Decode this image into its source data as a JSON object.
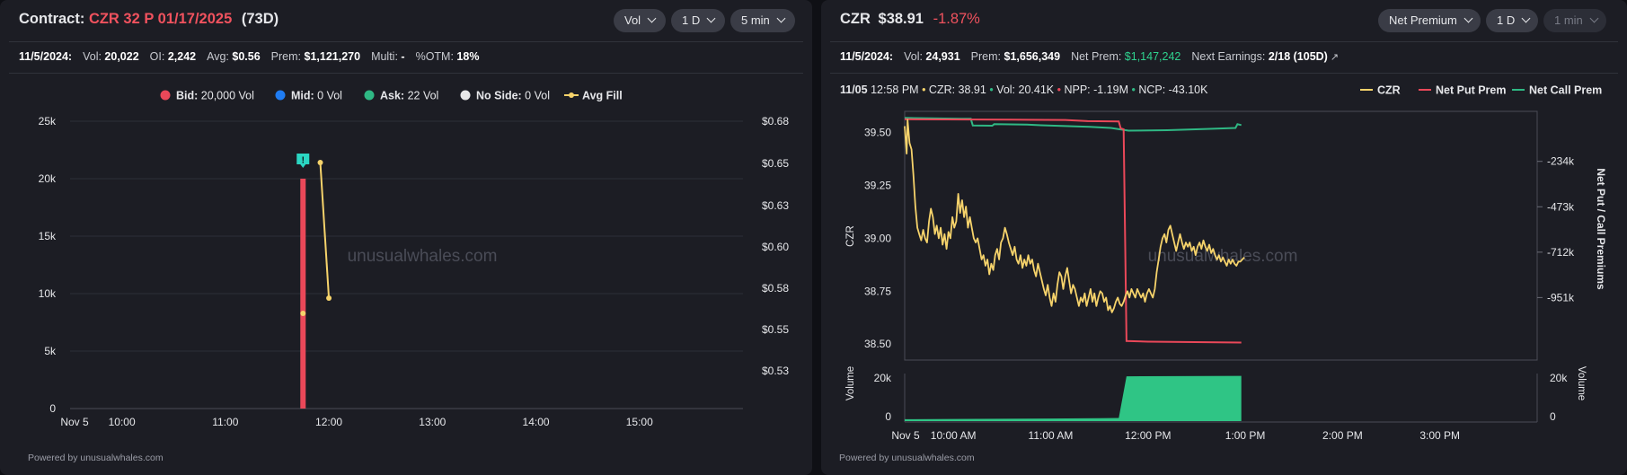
{
  "left": {
    "header": {
      "prefix": "Contract:",
      "contract": "CZR 32 P 01/17/2025",
      "days": "(73D)",
      "controls": [
        {
          "label": "Vol",
          "chevron": true,
          "enabled": true
        },
        {
          "label": "1 D",
          "chevron": true,
          "enabled": true
        },
        {
          "label": "5 min",
          "chevron": true,
          "enabled": true
        }
      ]
    },
    "stats": [
      {
        "label": "11/5/2024:",
        "value": "",
        "strong_label": true
      },
      {
        "label": "Vol:",
        "value": "20,022"
      },
      {
        "label": "OI:",
        "value": "2,242"
      },
      {
        "label": "Avg:",
        "value": "$0.56"
      },
      {
        "label": "Prem:",
        "value": "$1,121,270"
      },
      {
        "label": "Multi:",
        "value": "-"
      },
      {
        "label": "%OTM:",
        "value": "18%"
      }
    ],
    "legend": [
      {
        "name": "Bid:",
        "value": "20,000 Vol",
        "color": "#ea4859",
        "marker": "dot"
      },
      {
        "name": "Mid:",
        "value": "0 Vol",
        "color": "#1f7cf2",
        "marker": "dot"
      },
      {
        "name": "Ask:",
        "value": "22 Vol",
        "color": "#2fb884",
        "marker": "dot"
      },
      {
        "name": "No Side:",
        "value": "0 Vol",
        "color": "#e8e8e8",
        "marker": "dot"
      },
      {
        "name": "Avg Fill",
        "value": "",
        "color": "#f6d36b",
        "marker": "line"
      }
    ],
    "watermark": "unusualwhales.com",
    "powered": "Powered by unusualwhales.com"
  },
  "right": {
    "header": {
      "ticker": "CZR",
      "price": "$38.91",
      "change": "-1.87%",
      "controls": [
        {
          "label": "Net Premium",
          "chevron": true,
          "enabled": true
        },
        {
          "label": "1 D",
          "chevron": true,
          "enabled": true
        },
        {
          "label": "1 min",
          "chevron": true,
          "enabled": false
        }
      ]
    },
    "stats": [
      {
        "label": "11/5/2024:",
        "value": "",
        "strong_label": true
      },
      {
        "label": "Vol:",
        "value": "24,931"
      },
      {
        "label": "Prem:",
        "value": "$1,656,349"
      },
      {
        "label": "Net Prem:",
        "value": "$1,147,242",
        "green": true
      },
      {
        "label": "Next Earnings:",
        "value": "2/18 (105D)",
        "link": true
      }
    ],
    "hover": {
      "time": "11/05 12:58 PM",
      "items": [
        {
          "label": "CZR:",
          "value": "38.91",
          "color": "#f6d36b"
        },
        {
          "label": "Vol:",
          "value": "20.41K",
          "color": "#2fb884"
        },
        {
          "label": "NPP:",
          "value": "-1.19M",
          "color": "#ea4859"
        },
        {
          "label": "NCP:",
          "value": "-43.10K",
          "color": "#2fb884"
        }
      ]
    },
    "legend": [
      {
        "name": "CZR",
        "color": "#f6d36b"
      },
      {
        "name": "Net Put Prem",
        "color": "#ea4859"
      },
      {
        "name": "Net Call Prem",
        "color": "#2fb884"
      }
    ],
    "watermark": "unusualwhales.com",
    "powered": "Powered by unusualwhales.com"
  },
  "chart_data": [
    {
      "type": "bar",
      "x_ticks": [
        "Nov 5",
        "10:00",
        "11:00",
        "12:00",
        "13:00",
        "14:00",
        "15:00"
      ],
      "x_range_hours": [
        9.5,
        16.0
      ],
      "y_left": {
        "ticks": [
          "0",
          "5k",
          "10k",
          "15k",
          "20k",
          "25k"
        ],
        "range": [
          0,
          25000
        ]
      },
      "y_right": {
        "ticks": [
          "$0.53",
          "$0.55",
          "$0.58",
          "$0.60",
          "$0.63",
          "$0.65",
          "$0.68"
        ],
        "range": [
          0.515,
          0.68
        ]
      },
      "bars": [
        {
          "hour": 11.75,
          "bid": 20000,
          "ask": 22,
          "side": "bid",
          "color": "#ea4859"
        }
      ],
      "avg_fill": [
        {
          "hour": 11.75,
          "price": 0.56
        },
        {
          "hour": 11.917,
          "price": 0.652
        },
        {
          "hour": 12.0,
          "price": 0.572
        }
      ],
      "markers": [
        {
          "hour": 11.75,
          "label": "!",
          "color": "#2bd6c2"
        }
      ],
      "grid": true
    },
    {
      "type": "line",
      "x_ticks": [
        "Nov 5",
        "10:00 AM",
        "11:00 AM",
        "12:00 PM",
        "1:00 PM",
        "2:00 PM",
        "3:00 PM"
      ],
      "x_range_hours": [
        9.5,
        16.0
      ],
      "y_left": {
        "label": "CZR",
        "ticks": [
          "38.50",
          "38.75",
          "39.00",
          "39.25",
          "39.50"
        ],
        "range": [
          38.45,
          39.6
        ]
      },
      "y_right": {
        "label": "Net Put / Call Premiums",
        "ticks": [
          "-234k",
          "-473k",
          "-712k",
          "-951k"
        ],
        "range": [
          -1195000,
          20000
        ]
      },
      "volume": {
        "label": "Volume",
        "left_ticks": [
          "0",
          "20k"
        ],
        "right_ticks": [
          "0",
          "20k"
        ],
        "range": [
          0,
          22000
        ],
        "color": "#2fc585"
      },
      "czr_points": [
        [
          9.5,
          39.53
        ],
        [
          9.52,
          39.4
        ],
        [
          9.53,
          39.56
        ],
        [
          9.55,
          39.45
        ],
        [
          9.57,
          39.42
        ],
        [
          9.59,
          39.3
        ],
        [
          9.61,
          39.15
        ],
        [
          9.63,
          39.05
        ],
        [
          9.65,
          39.02
        ],
        [
          9.67,
          38.99
        ],
        [
          9.69,
          39.04
        ],
        [
          9.71,
          39.0
        ],
        [
          9.73,
          38.98
        ],
        [
          9.75,
          39.08
        ],
        [
          9.77,
          39.14
        ],
        [
          9.79,
          39.1
        ],
        [
          9.81,
          39.02
        ],
        [
          9.83,
          39.06
        ],
        [
          9.85,
          39.0
        ],
        [
          9.87,
          39.05
        ],
        [
          9.89,
          38.97
        ],
        [
          9.91,
          39.02
        ],
        [
          9.93,
          38.95
        ],
        [
          9.95,
          39.03
        ],
        [
          9.97,
          39.0
        ],
        [
          9.99,
          39.1
        ],
        [
          10.01,
          39.05
        ],
        [
          10.03,
          39.08
        ],
        [
          10.05,
          39.21
        ],
        [
          10.07,
          39.12
        ],
        [
          10.09,
          39.18
        ],
        [
          10.11,
          39.1
        ],
        [
          10.13,
          39.15
        ],
        [
          10.15,
          39.05
        ],
        [
          10.17,
          39.1
        ],
        [
          10.19,
          39.05
        ],
        [
          10.21,
          39.0
        ],
        [
          10.23,
          38.98
        ],
        [
          10.25,
          39.0
        ],
        [
          10.27,
          38.95
        ],
        [
          10.29,
          38.9
        ],
        [
          10.31,
          38.92
        ],
        [
          10.33,
          38.87
        ],
        [
          10.35,
          38.9
        ],
        [
          10.37,
          38.83
        ],
        [
          10.39,
          38.88
        ],
        [
          10.41,
          38.85
        ],
        [
          10.43,
          38.92
        ],
        [
          10.45,
          38.95
        ],
        [
          10.47,
          38.9
        ],
        [
          10.49,
          38.98
        ],
        [
          10.51,
          39.0
        ],
        [
          10.53,
          39.05
        ],
        [
          10.55,
          39.02
        ],
        [
          10.57,
          38.98
        ],
        [
          10.59,
          38.95
        ],
        [
          10.61,
          38.92
        ],
        [
          10.63,
          38.96
        ],
        [
          10.65,
          38.9
        ],
        [
          10.67,
          38.88
        ],
        [
          10.69,
          38.92
        ],
        [
          10.71,
          38.86
        ],
        [
          10.73,
          38.9
        ],
        [
          10.75,
          38.87
        ],
        [
          10.77,
          38.92
        ],
        [
          10.79,
          38.88
        ],
        [
          10.81,
          38.9
        ],
        [
          10.83,
          38.85
        ],
        [
          10.85,
          38.82
        ],
        [
          10.87,
          38.88
        ],
        [
          10.89,
          38.84
        ],
        [
          10.91,
          38.8
        ],
        [
          10.93,
          38.76
        ],
        [
          10.95,
          38.73
        ],
        [
          10.97,
          38.78
        ],
        [
          10.99,
          38.72
        ],
        [
          11.01,
          38.68
        ],
        [
          11.03,
          38.74
        ],
        [
          11.05,
          38.7
        ],
        [
          11.07,
          38.78
        ],
        [
          11.09,
          38.84
        ],
        [
          11.11,
          38.82
        ],
        [
          11.13,
          38.76
        ],
        [
          11.15,
          38.82
        ],
        [
          11.17,
          38.86
        ],
        [
          11.19,
          38.8
        ],
        [
          11.21,
          38.74
        ],
        [
          11.23,
          38.78
        ],
        [
          11.25,
          38.76
        ],
        [
          11.27,
          38.72
        ],
        [
          11.29,
          38.68
        ],
        [
          11.31,
          38.72
        ],
        [
          11.33,
          38.7
        ],
        [
          11.35,
          38.74
        ],
        [
          11.37,
          38.68
        ],
        [
          11.39,
          38.72
        ],
        [
          11.41,
          38.76
        ],
        [
          11.43,
          38.7
        ],
        [
          11.45,
          38.74
        ],
        [
          11.47,
          38.68
        ],
        [
          11.49,
          38.72
        ],
        [
          11.51,
          38.75
        ],
        [
          11.53,
          38.74
        ],
        [
          11.55,
          38.7
        ],
        [
          11.57,
          38.72
        ],
        [
          11.59,
          38.66
        ],
        [
          11.61,
          38.68
        ],
        [
          11.63,
          38.65
        ],
        [
          11.65,
          38.67
        ],
        [
          11.67,
          38.7
        ],
        [
          11.69,
          38.72
        ],
        [
          11.71,
          38.69
        ],
        [
          11.73,
          38.68
        ],
        [
          11.75,
          38.7
        ],
        [
          11.77,
          38.73
        ],
        [
          11.79,
          38.75
        ],
        [
          11.81,
          38.72
        ],
        [
          11.83,
          38.76
        ],
        [
          11.85,
          38.74
        ],
        [
          11.87,
          38.72
        ],
        [
          11.89,
          38.76
        ],
        [
          11.91,
          38.74
        ],
        [
          11.93,
          38.72
        ],
        [
          11.95,
          38.74
        ],
        [
          11.97,
          38.7
        ],
        [
          11.99,
          38.74
        ],
        [
          12.01,
          38.76
        ],
        [
          12.03,
          38.74
        ],
        [
          12.05,
          38.72
        ],
        [
          12.07,
          38.76
        ],
        [
          12.09,
          38.84
        ],
        [
          12.11,
          38.9
        ],
        [
          12.13,
          38.96
        ],
        [
          12.15,
          39.0
        ],
        [
          12.17,
          39.02
        ],
        [
          12.19,
          38.98
        ],
        [
          12.21,
          39.04
        ],
        [
          12.23,
          39.06
        ],
        [
          12.25,
          39.02
        ],
        [
          12.27,
          38.98
        ],
        [
          12.29,
          38.94
        ],
        [
          12.31,
          38.98
        ],
        [
          12.33,
          39.02
        ],
        [
          12.35,
          38.98
        ],
        [
          12.37,
          38.95
        ],
        [
          12.39,
          38.98
        ],
        [
          12.41,
          38.96
        ],
        [
          12.43,
          38.98
        ],
        [
          12.45,
          38.94
        ],
        [
          12.47,
          38.96
        ],
        [
          12.49,
          38.92
        ],
        [
          12.51,
          38.96
        ],
        [
          12.53,
          38.98
        ],
        [
          12.55,
          38.95
        ],
        [
          12.57,
          38.99
        ],
        [
          12.59,
          38.96
        ],
        [
          12.61,
          38.94
        ],
        [
          12.63,
          38.97
        ],
        [
          12.65,
          38.93
        ],
        [
          12.67,
          38.95
        ],
        [
          12.69,
          38.92
        ],
        [
          12.71,
          38.9
        ],
        [
          12.73,
          38.92
        ],
        [
          12.75,
          38.89
        ],
        [
          12.77,
          38.91
        ],
        [
          12.79,
          38.89
        ],
        [
          12.81,
          38.87
        ],
        [
          12.83,
          38.9
        ],
        [
          12.85,
          38.88
        ],
        [
          12.87,
          38.9
        ],
        [
          12.89,
          38.88
        ],
        [
          12.91,
          38.87
        ],
        [
          12.93,
          38.89
        ],
        [
          12.95,
          38.89
        ],
        [
          12.97,
          38.9
        ],
        [
          12.99,
          38.91
        ]
      ],
      "net_put_points": [
        [
          9.5,
          -12000
        ],
        [
          10.6,
          -14000
        ],
        [
          11.15,
          -16000
        ],
        [
          11.38,
          -22000
        ],
        [
          11.7,
          -24000
        ],
        [
          11.72,
          -60000
        ],
        [
          11.75,
          -65000
        ],
        [
          11.78,
          -1180000
        ],
        [
          12.0,
          -1183000
        ],
        [
          12.96,
          -1188000
        ]
      ],
      "net_call_points": [
        [
          9.5,
          -5000
        ],
        [
          10.08,
          -10000
        ],
        [
          10.18,
          -10000
        ],
        [
          10.2,
          -45000
        ],
        [
          10.4,
          -46000
        ],
        [
          10.42,
          -38000
        ],
        [
          10.75,
          -40000
        ],
        [
          10.9,
          -44000
        ],
        [
          11.4,
          -52000
        ],
        [
          11.62,
          -58000
        ],
        [
          11.8,
          -72000
        ],
        [
          12.2,
          -70000
        ],
        [
          12.6,
          -63000
        ],
        [
          12.9,
          -58000
        ],
        [
          12.92,
          -38000
        ],
        [
          12.96,
          -43000
        ]
      ],
      "volume_points": [
        [
          9.5,
          30
        ],
        [
          10.0,
          180
        ],
        [
          11.0,
          380
        ],
        [
          11.5,
          520
        ],
        [
          11.7,
          600
        ],
        [
          11.78,
          19500
        ],
        [
          12.96,
          19700
        ]
      ],
      "grid": true
    }
  ]
}
